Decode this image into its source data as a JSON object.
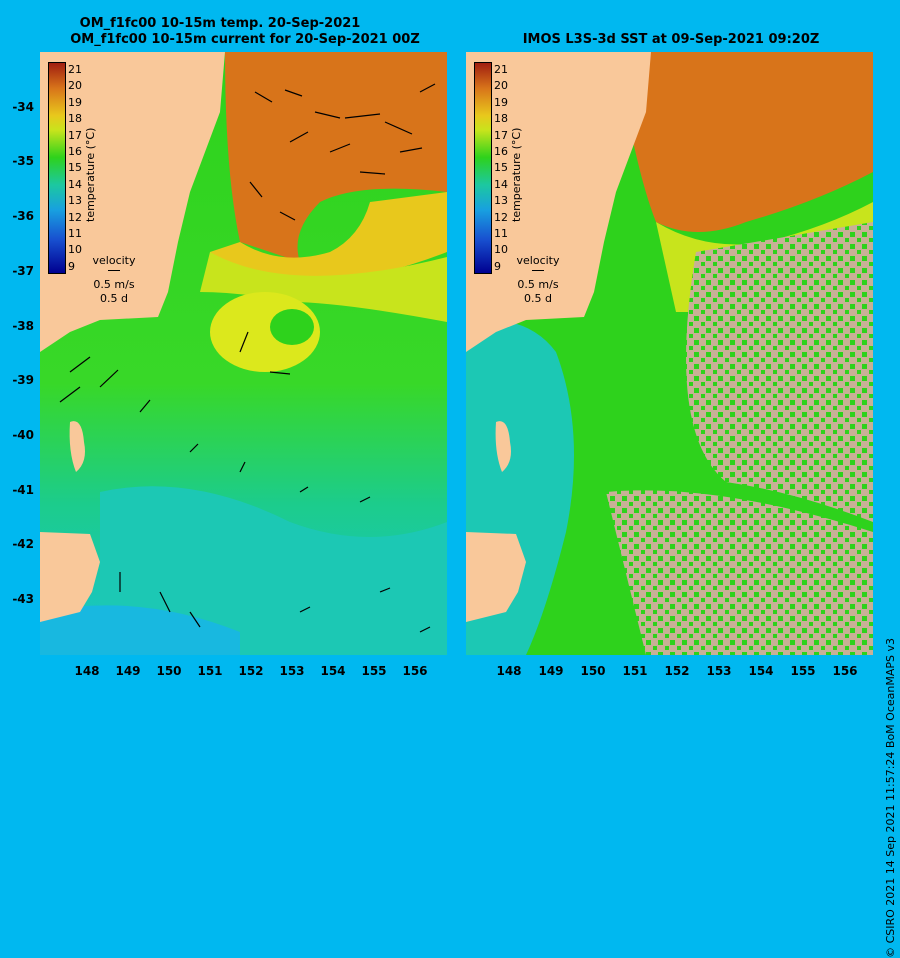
{
  "left_panel": {
    "title_line1": "OM_f1fc00 10-15m temp. 20-Sep-2021",
    "title_line2": "OM_f1fc00 10-15m current for 20-Sep-2021 00Z",
    "colorbar_label": "temperature (°C)",
    "velocity_label": "velocity",
    "velocity_speed": "0.5 m/s",
    "velocity_time": "0.5 d"
  },
  "right_panel": {
    "title": "IMOS L3S-3d SST at 09-Sep-2021 09:20Z",
    "colorbar_label": "temperature (°C)",
    "velocity_label": "velocity",
    "velocity_speed": "0.5 m/s",
    "velocity_time": "0.5 d"
  },
  "colorbar_ticks": [
    "21",
    "20",
    "19",
    "18",
    "17",
    "16",
    "15",
    "14",
    "13",
    "12",
    "11",
    "10",
    "9"
  ],
  "lat_ticks": [
    "-34",
    "-35",
    "-36",
    "-37",
    "-38",
    "-39",
    "-40",
    "-41",
    "-42",
    "-43"
  ],
  "lon_ticks": [
    "148",
    "149",
    "150",
    "151",
    "152",
    "153",
    "154",
    "155",
    "156"
  ],
  "credit": "© CSIRO 2021   14 Sep 2021 11:57:24 BoM OceanMAPS v3",
  "colors": {
    "background": "#00b8f0",
    "land": "#f9c89a",
    "warm": "#d8741a",
    "yellow": "#e8e41c",
    "green": "#2ed21c",
    "teal": "#1cc8a0",
    "cloud": "#c8b096"
  }
}
